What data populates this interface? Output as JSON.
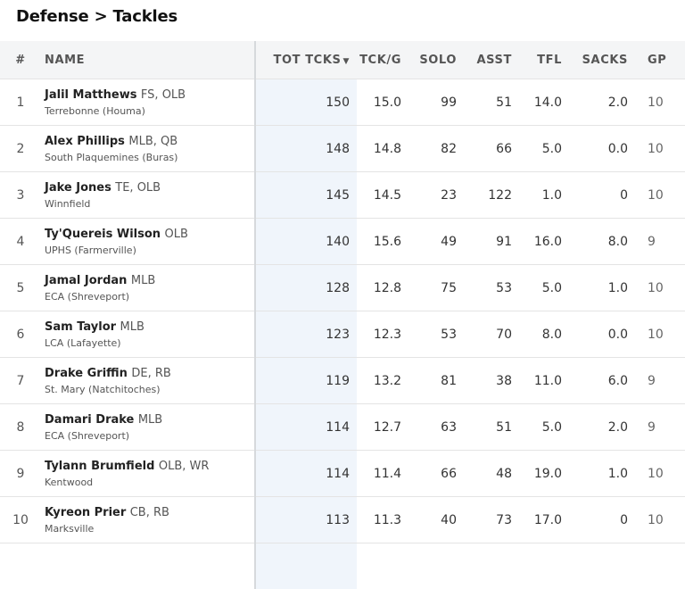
{
  "page": {
    "title": "Defense > Tackles"
  },
  "table": {
    "columns": {
      "rank": "#",
      "name": "NAME",
      "tot": "TOT TCKS",
      "tckg": "TCK/G",
      "solo": "SOLO",
      "asst": "ASST",
      "tfl": "TFL",
      "sacks": "SACKS",
      "gp": "GP"
    },
    "sort_indicator": "▼",
    "rows": [
      {
        "rank": "1",
        "name": "Jalil Matthews",
        "pos": "FS, OLB",
        "school": "Terrebonne (Houma)",
        "tot": "150",
        "tckg": "15.0",
        "solo": "99",
        "asst": "51",
        "tfl": "14.0",
        "sacks": "2.0",
        "gp": "10"
      },
      {
        "rank": "2",
        "name": "Alex Phillips",
        "pos": "MLB, QB",
        "school": "South Plaquemines (Buras)",
        "tot": "148",
        "tckg": "14.8",
        "solo": "82",
        "asst": "66",
        "tfl": "5.0",
        "sacks": "0.0",
        "gp": "10"
      },
      {
        "rank": "3",
        "name": "Jake Jones",
        "pos": "TE, OLB",
        "school": "Winnfield",
        "tot": "145",
        "tckg": "14.5",
        "solo": "23",
        "asst": "122",
        "tfl": "1.0",
        "sacks": "0",
        "gp": "10"
      },
      {
        "rank": "4",
        "name": "Ty'Quereis Wilson",
        "pos": "OLB",
        "school": "UPHS (Farmerville)",
        "tot": "140",
        "tckg": "15.6",
        "solo": "49",
        "asst": "91",
        "tfl": "16.0",
        "sacks": "8.0",
        "gp": "9"
      },
      {
        "rank": "5",
        "name": "Jamal Jordan",
        "pos": "MLB",
        "school": "ECA (Shreveport)",
        "tot": "128",
        "tckg": "12.8",
        "solo": "75",
        "asst": "53",
        "tfl": "5.0",
        "sacks": "1.0",
        "gp": "10"
      },
      {
        "rank": "6",
        "name": "Sam Taylor",
        "pos": "MLB",
        "school": "LCA (Lafayette)",
        "tot": "123",
        "tckg": "12.3",
        "solo": "53",
        "asst": "70",
        "tfl": "8.0",
        "sacks": "0.0",
        "gp": "10"
      },
      {
        "rank": "7",
        "name": "Drake Griffin",
        "pos": "DE, RB",
        "school": "St. Mary (Natchitoches)",
        "tot": "119",
        "tckg": "13.2",
        "solo": "81",
        "asst": "38",
        "tfl": "11.0",
        "sacks": "6.0",
        "gp": "9"
      },
      {
        "rank": "8",
        "name": "Damari Drake",
        "pos": "MLB",
        "school": "ECA (Shreveport)",
        "tot": "114",
        "tckg": "12.7",
        "solo": "63",
        "asst": "51",
        "tfl": "5.0",
        "sacks": "2.0",
        "gp": "9"
      },
      {
        "rank": "9",
        "name": "Tylann Brumfield",
        "pos": "OLB, WR",
        "school": "Kentwood",
        "tot": "114",
        "tckg": "11.4",
        "solo": "66",
        "asst": "48",
        "tfl": "19.0",
        "sacks": "1.0",
        "gp": "10"
      },
      {
        "rank": "10",
        "name": "Kyreon Prier",
        "pos": "CB, RB",
        "school": "Marksville",
        "tot": "113",
        "tckg": "11.3",
        "solo": "40",
        "asst": "73",
        "tfl": "17.0",
        "sacks": "0",
        "gp": "10"
      }
    ]
  }
}
